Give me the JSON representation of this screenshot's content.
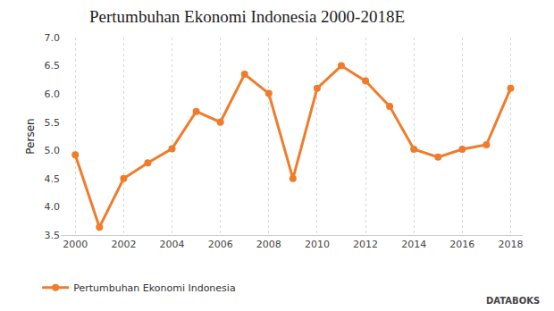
{
  "chart_data": {
    "type": "line",
    "title": "Pertumbuhan Ekonomi Indonesia 2000-2018E",
    "y_label": "Persen",
    "x": [
      2000,
      2001,
      2002,
      2003,
      2004,
      2005,
      2006,
      2007,
      2008,
      2009,
      2010,
      2011,
      2012,
      2013,
      2014,
      2015,
      2016,
      2017,
      2018
    ],
    "series": [
      {
        "name": "Pertumbuhan Ekonomi Indonesia",
        "color": "#f07c2b",
        "marker": "circle",
        "line_style": "solid",
        "values": [
          4.92,
          3.64,
          4.5,
          4.78,
          5.03,
          5.69,
          5.5,
          6.35,
          6.01,
          4.5,
          6.1,
          6.5,
          6.23,
          5.78,
          5.02,
          4.88,
          5.02,
          5.1,
          6.1
        ]
      }
    ],
    "xlim": [
      1999.4,
      2018.5
    ],
    "xticks": [
      2000,
      2002,
      2004,
      2006,
      2008,
      2010,
      2012,
      2014,
      2016,
      2018
    ],
    "ylim": [
      3.5,
      7.0
    ],
    "yticks": [
      3.5,
      {
        "value": 4,
        "label": "4.0"
      },
      4.5,
      {
        "value": 5,
        "label": "5.0"
      },
      5.5,
      {
        "value": 6,
        "label": "6.0"
      },
      6.5,
      {
        "value": 7,
        "label": "7.0"
      }
    ],
    "grid": true,
    "legend": "bottom",
    "annotations": [
      "DATABOKS"
    ]
  }
}
